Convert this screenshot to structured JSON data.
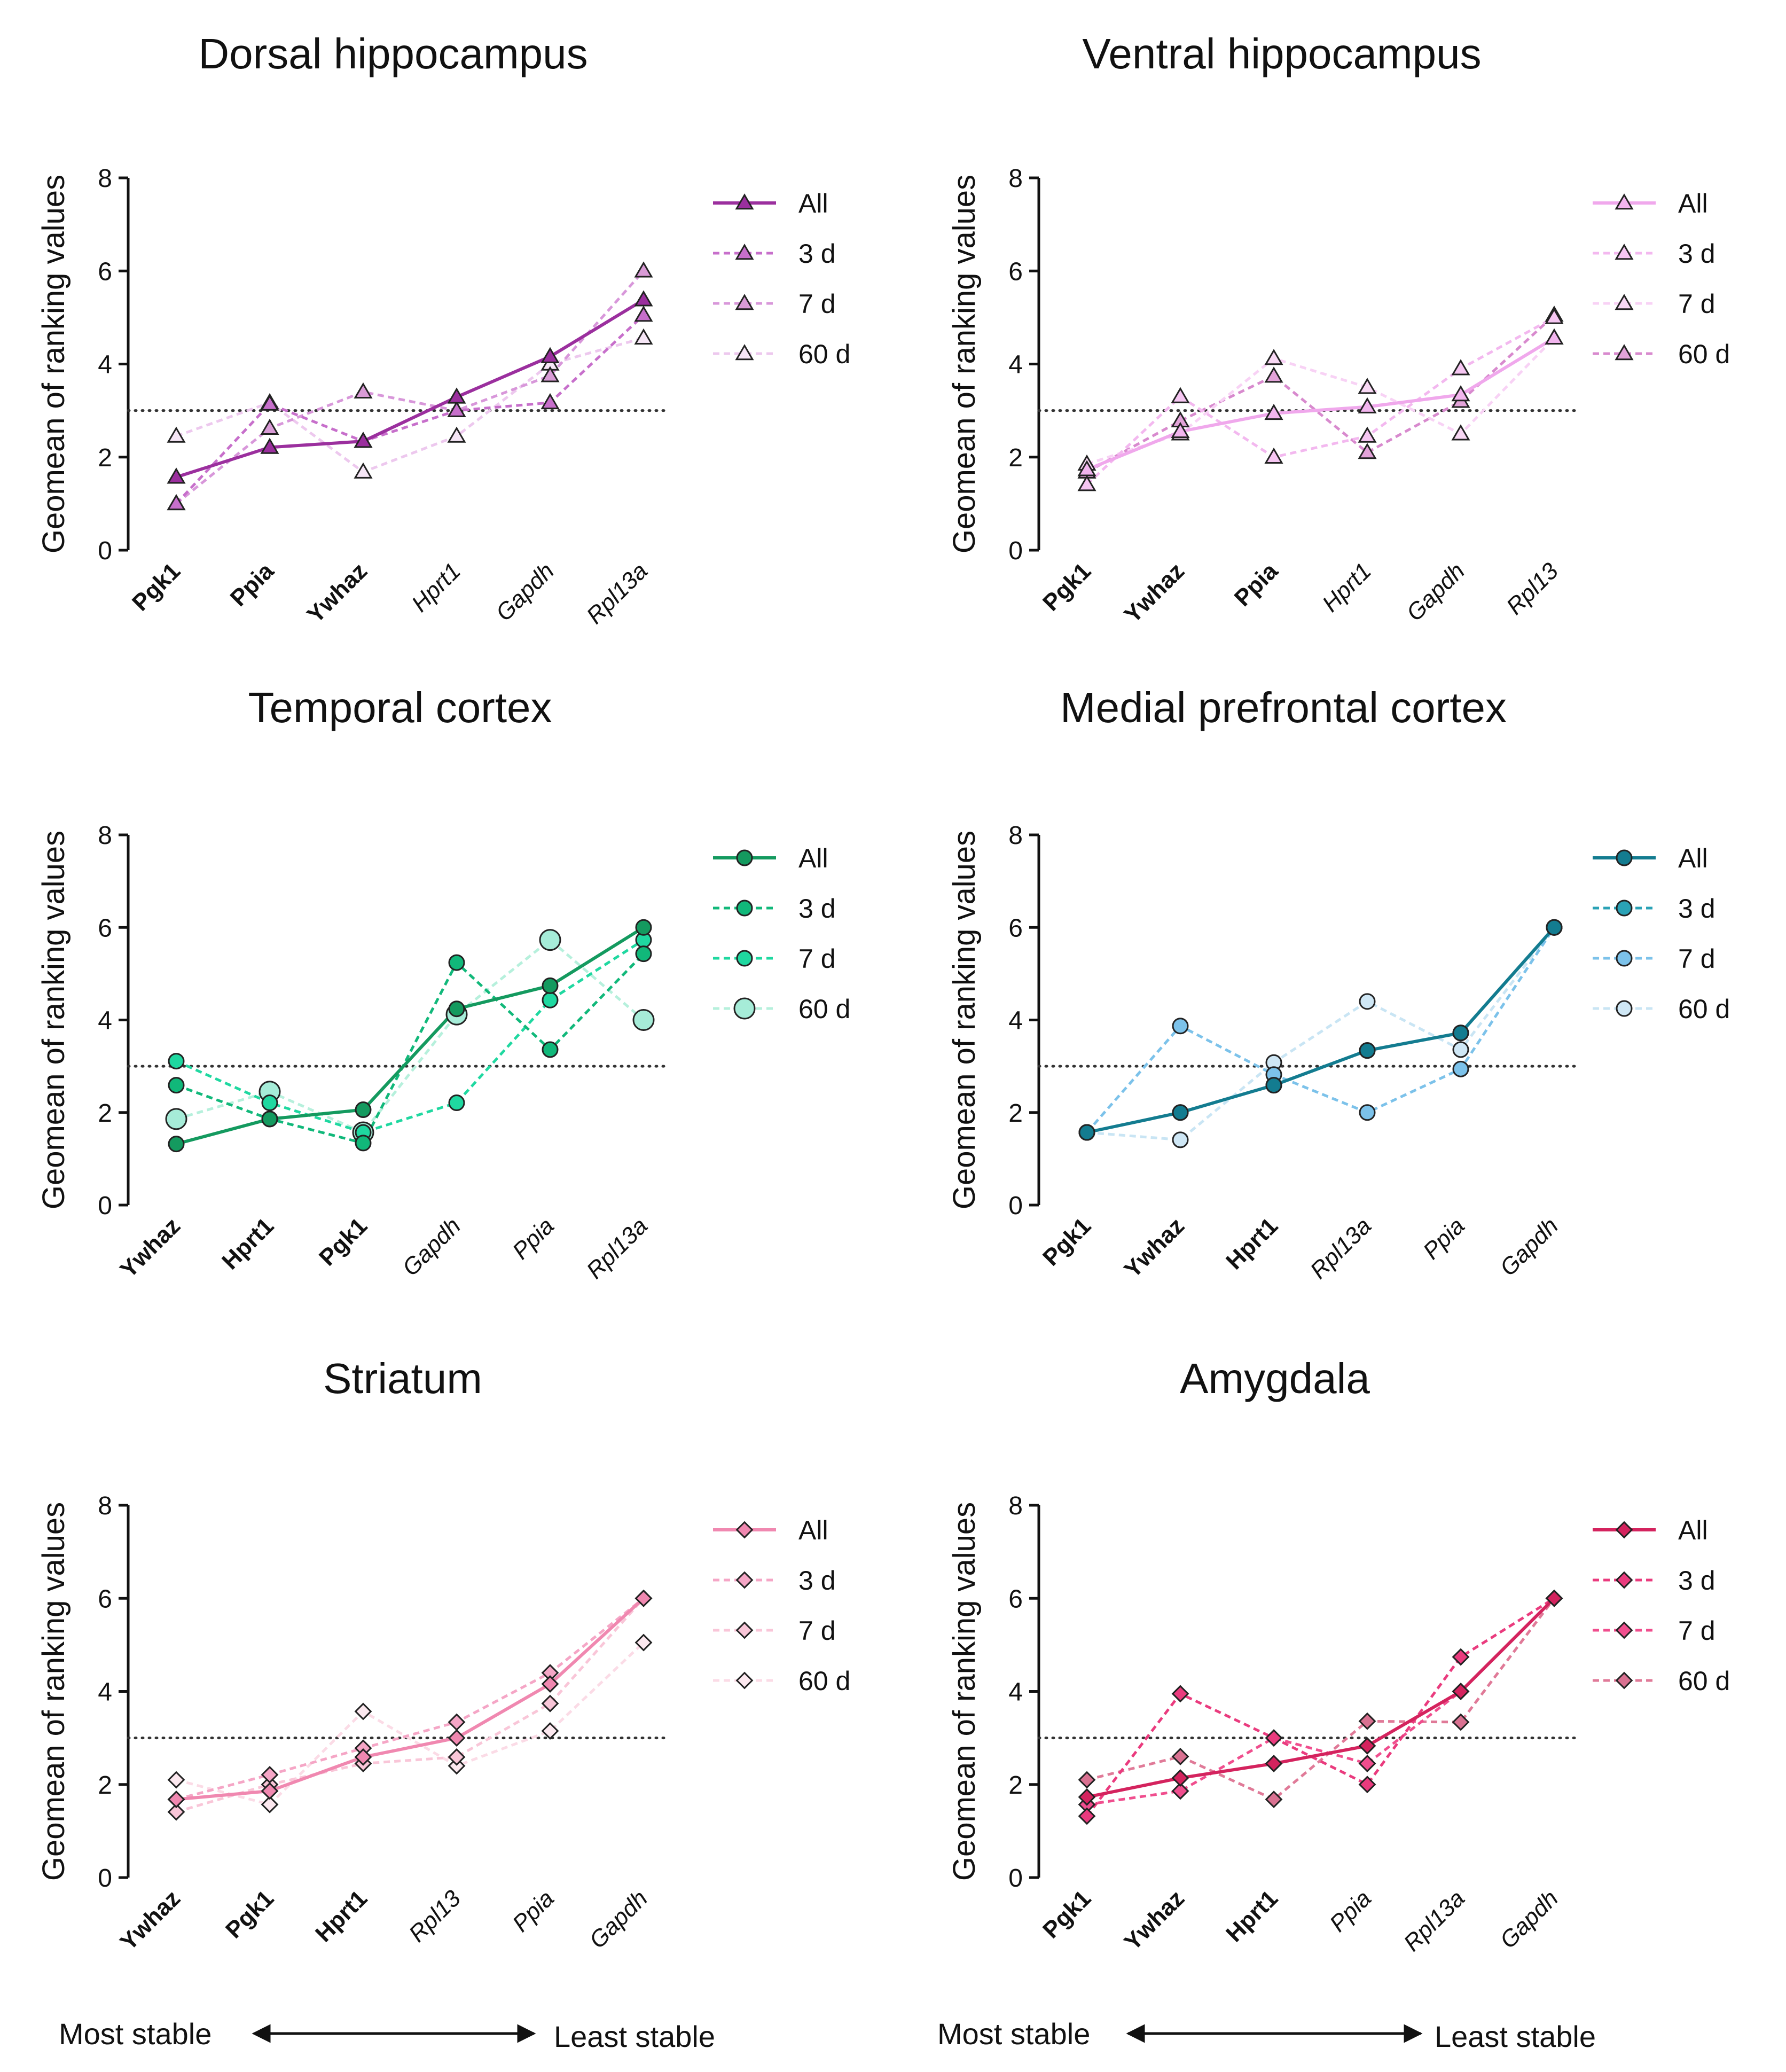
{
  "chart_data": [
    {
      "type": "line",
      "title": "Dorsal hippocampus",
      "ylabel": "Geomean of ranking values",
      "ylim": [
        0,
        8
      ],
      "yticks": [
        "0",
        "2",
        "4",
        "6",
        "8"
      ],
      "reference_line": 3,
      "marker": "triangle",
      "categories": [
        {
          "label": "Pgk1",
          "bold": true
        },
        {
          "label": "Ppia",
          "bold": true
        },
        {
          "label": "Ywhaz",
          "bold": true
        },
        {
          "label": "Hprt1",
          "bold": false
        },
        {
          "label": "Gapdh",
          "bold": false
        },
        {
          "label": "Rpl13a",
          "bold": false
        }
      ],
      "series": [
        {
          "name": "All",
          "values": [
            1.57,
            2.21,
            2.34,
            3.29,
            4.16,
            5.38
          ],
          "color": "#9b2f9e",
          "fill": "#9b2f9e",
          "dashed": false
        },
        {
          "name": "3 d",
          "values": [
            1.0,
            3.14,
            2.34,
            3.0,
            3.17,
            5.05
          ],
          "color": "#c76fcb",
          "fill": "#c76fcb",
          "dashed": true
        },
        {
          "name": "7 d",
          "values": [
            1.0,
            2.62,
            3.4,
            3.0,
            3.75,
            6.0
          ],
          "color": "#d897da",
          "fill": "#d99bd6",
          "dashed": true
        },
        {
          "name": "60 d",
          "values": [
            2.45,
            3.17,
            1.68,
            2.45,
            4.0,
            4.56
          ],
          "color": "#edc8ee",
          "fill": "#f6e6f6",
          "dashed": true
        }
      ]
    },
    {
      "type": "line",
      "title": "Ventral hippocampus",
      "ylabel": "Geomean of ranking values",
      "ylim": [
        0,
        8
      ],
      "yticks": [
        "0",
        "2",
        "4",
        "6",
        "8"
      ],
      "reference_line": 3,
      "marker": "triangle",
      "categories": [
        {
          "label": "Pgk1",
          "bold": true
        },
        {
          "label": "Ywhaz",
          "bold": true
        },
        {
          "label": "Ppia",
          "bold": true
        },
        {
          "label": "Hprt1",
          "bold": false
        },
        {
          "label": "Gapdh",
          "bold": false
        },
        {
          "label": "Rpl13",
          "bold": false
        }
      ],
      "series": [
        {
          "name": "All",
          "values": [
            1.73,
            2.55,
            2.94,
            3.08,
            3.34,
            4.56
          ],
          "color": "#f0a8ec",
          "fill": "#f2b5ee",
          "dashed": false
        },
        {
          "name": "3 d",
          "values": [
            1.41,
            3.3,
            2.0,
            2.45,
            3.9,
            5.0
          ],
          "color": "#f3b8ef",
          "fill": "#f6c6f2",
          "dashed": true
        },
        {
          "name": "7 d",
          "values": [
            1.85,
            2.5,
            4.12,
            3.5,
            2.5,
            4.56
          ],
          "color": "#f8d2f5",
          "fill": "#f8d8f4",
          "dashed": true
        },
        {
          "name": "60 d",
          "values": [
            1.68,
            2.78,
            3.74,
            2.1,
            3.2,
            5.05
          ],
          "color": "#d88ace",
          "fill": "#e3a3d9",
          "dashed": true
        }
      ]
    },
    {
      "type": "line",
      "title": "Temporal cortex",
      "ylabel": "Geomean of ranking values",
      "ylim": [
        0,
        8
      ],
      "yticks": [
        "0",
        "2",
        "4",
        "6",
        "8"
      ],
      "reference_line": 3,
      "marker": "circle",
      "categories": [
        {
          "label": "Ywhaz",
          "bold": true
        },
        {
          "label": "Hprt1",
          "bold": true
        },
        {
          "label": "Pgk1",
          "bold": true
        },
        {
          "label": "Gapdh",
          "bold": false
        },
        {
          "label": "Ppia",
          "bold": false
        },
        {
          "label": "Rpl13a",
          "bold": false
        }
      ],
      "series": [
        {
          "name": "All",
          "values": [
            1.32,
            1.86,
            2.06,
            4.24,
            4.74,
            6.0
          ],
          "color": "#149a5f",
          "fill": "#149a5f",
          "dashed": false,
          "r": 14
        },
        {
          "name": "3 d",
          "values": [
            2.59,
            1.86,
            1.34,
            5.24,
            3.36,
            5.43
          ],
          "color": "#11b87a",
          "fill": "#11b87a",
          "dashed": true,
          "r": 14
        },
        {
          "name": "7 d",
          "values": [
            3.11,
            2.21,
            1.57,
            2.21,
            4.43,
            5.73
          ],
          "color": "#1fd8a0",
          "fill": "#1fd8a0",
          "dashed": true,
          "r": 14
        },
        {
          "name": "60 d",
          "values": [
            1.86,
            2.45,
            1.57,
            4.12,
            5.73,
            4.0
          ],
          "color": "#b6f0dc",
          "fill": "#a6ecd8",
          "dashed": true,
          "r": 19
        }
      ]
    },
    {
      "type": "line",
      "title": "Medial prefrontal cortex",
      "ylabel": "Geomean of ranking values",
      "ylim": [
        0,
        8
      ],
      "yticks": [
        "0",
        "2",
        "4",
        "6",
        "8"
      ],
      "reference_line": 3,
      "marker": "circle",
      "categories": [
        {
          "label": "Pgk1",
          "bold": true
        },
        {
          "label": "Ywhaz",
          "bold": true
        },
        {
          "label": "Hprt1",
          "bold": true
        },
        {
          "label": "Rpl13a",
          "bold": false
        },
        {
          "label": "Ppia",
          "bold": false
        },
        {
          "label": "Gapdh",
          "bold": false
        }
      ],
      "series": [
        {
          "name": "All",
          "values": [
            1.57,
            2.0,
            2.59,
            3.34,
            3.72,
            6.0
          ],
          "color": "#137c90",
          "fill": "#137c90",
          "dashed": false,
          "r": 14
        },
        {
          "name": "3 d",
          "values": [
            1.57,
            2.0,
            2.59,
            3.34,
            3.72,
            6.0
          ],
          "color": "#2aa2b6",
          "fill": "#2aa2b6",
          "dashed": true,
          "r": 14
        },
        {
          "name": "7 d",
          "values": [
            1.57,
            3.87,
            2.82,
            2.0,
            2.94,
            6.0
          ],
          "color": "#7cc2ea",
          "fill": "#7cc2ea",
          "dashed": true,
          "r": 14
        },
        {
          "name": "60 d",
          "values": [
            1.57,
            1.41,
            3.08,
            4.4,
            3.36,
            6.0
          ],
          "color": "#c9e5f4",
          "fill": "#cfe7f5",
          "dashed": true,
          "r": 14
        }
      ]
    },
    {
      "type": "line",
      "title": "Striatum",
      "ylabel": "Geomean of ranking values",
      "ylim": [
        0,
        8
      ],
      "yticks": [
        "0",
        "2",
        "4",
        "6",
        "8"
      ],
      "reference_line": 3,
      "marker": "diamond",
      "categories": [
        {
          "label": "Ywhaz",
          "bold": true
        },
        {
          "label": "Pgk1",
          "bold": true
        },
        {
          "label": "Hprt1",
          "bold": true
        },
        {
          "label": "Rpl13",
          "bold": false
        },
        {
          "label": "Ppia",
          "bold": false
        },
        {
          "label": "Gapdh",
          "bold": false
        }
      ],
      "series": [
        {
          "name": "All",
          "values": [
            1.68,
            1.86,
            2.59,
            3.0,
            4.16,
            6.0
          ],
          "color": "#f088b0",
          "fill": "#f088b0",
          "dashed": false
        },
        {
          "name": "3 d",
          "values": [
            1.68,
            2.21,
            2.78,
            3.34,
            4.4,
            6.0
          ],
          "color": "#f5a6c6",
          "fill": "#f5a6c6",
          "dashed": true
        },
        {
          "name": "7 d",
          "values": [
            1.41,
            2.0,
            2.45,
            2.59,
            3.74,
            6.0
          ],
          "color": "#f9c6d8",
          "fill": "#f9c6d8",
          "dashed": true
        },
        {
          "name": "60 d",
          "values": [
            2.1,
            1.57,
            3.57,
            2.4,
            3.15,
            5.05
          ],
          "color": "#fbdbe6",
          "fill": "#fce8ef",
          "dashed": true
        }
      ]
    },
    {
      "type": "line",
      "title": "Amygdala",
      "ylabel": "Geomean of ranking values",
      "ylim": [
        0,
        8
      ],
      "yticks": [
        "0",
        "2",
        "4",
        "6",
        "8"
      ],
      "reference_line": 3,
      "marker": "diamond",
      "categories": [
        {
          "label": "Pgk1",
          "bold": true
        },
        {
          "label": "Ywhaz",
          "bold": true
        },
        {
          "label": "Hprt1",
          "bold": true
        },
        {
          "label": "Ppia",
          "bold": false
        },
        {
          "label": "Rpl13a",
          "bold": false
        },
        {
          "label": "Gapdh",
          "bold": false
        }
      ],
      "series": [
        {
          "name": "All",
          "values": [
            1.73,
            2.14,
            2.45,
            2.83,
            4.0,
            6.0
          ],
          "color": "#d4235e",
          "fill": "#d4235e",
          "dashed": false
        },
        {
          "name": "3 d",
          "values": [
            1.32,
            3.95,
            3.0,
            2.0,
            4.74,
            6.0
          ],
          "color": "#ea3b7e",
          "fill": "#ea3b7e",
          "dashed": true
        },
        {
          "name": "7 d",
          "values": [
            1.57,
            1.86,
            3.0,
            2.45,
            4.0,
            6.0
          ],
          "color": "#f04e8e",
          "fill": "#f04e8e",
          "dashed": true
        },
        {
          "name": "60 d",
          "values": [
            2.1,
            2.6,
            1.68,
            3.36,
            3.34,
            6.0
          ],
          "color": "#e07a98",
          "fill": "#d97191",
          "dashed": true
        }
      ]
    }
  ],
  "stability_axis": {
    "most": "Most stable",
    "least": "Least stable"
  }
}
